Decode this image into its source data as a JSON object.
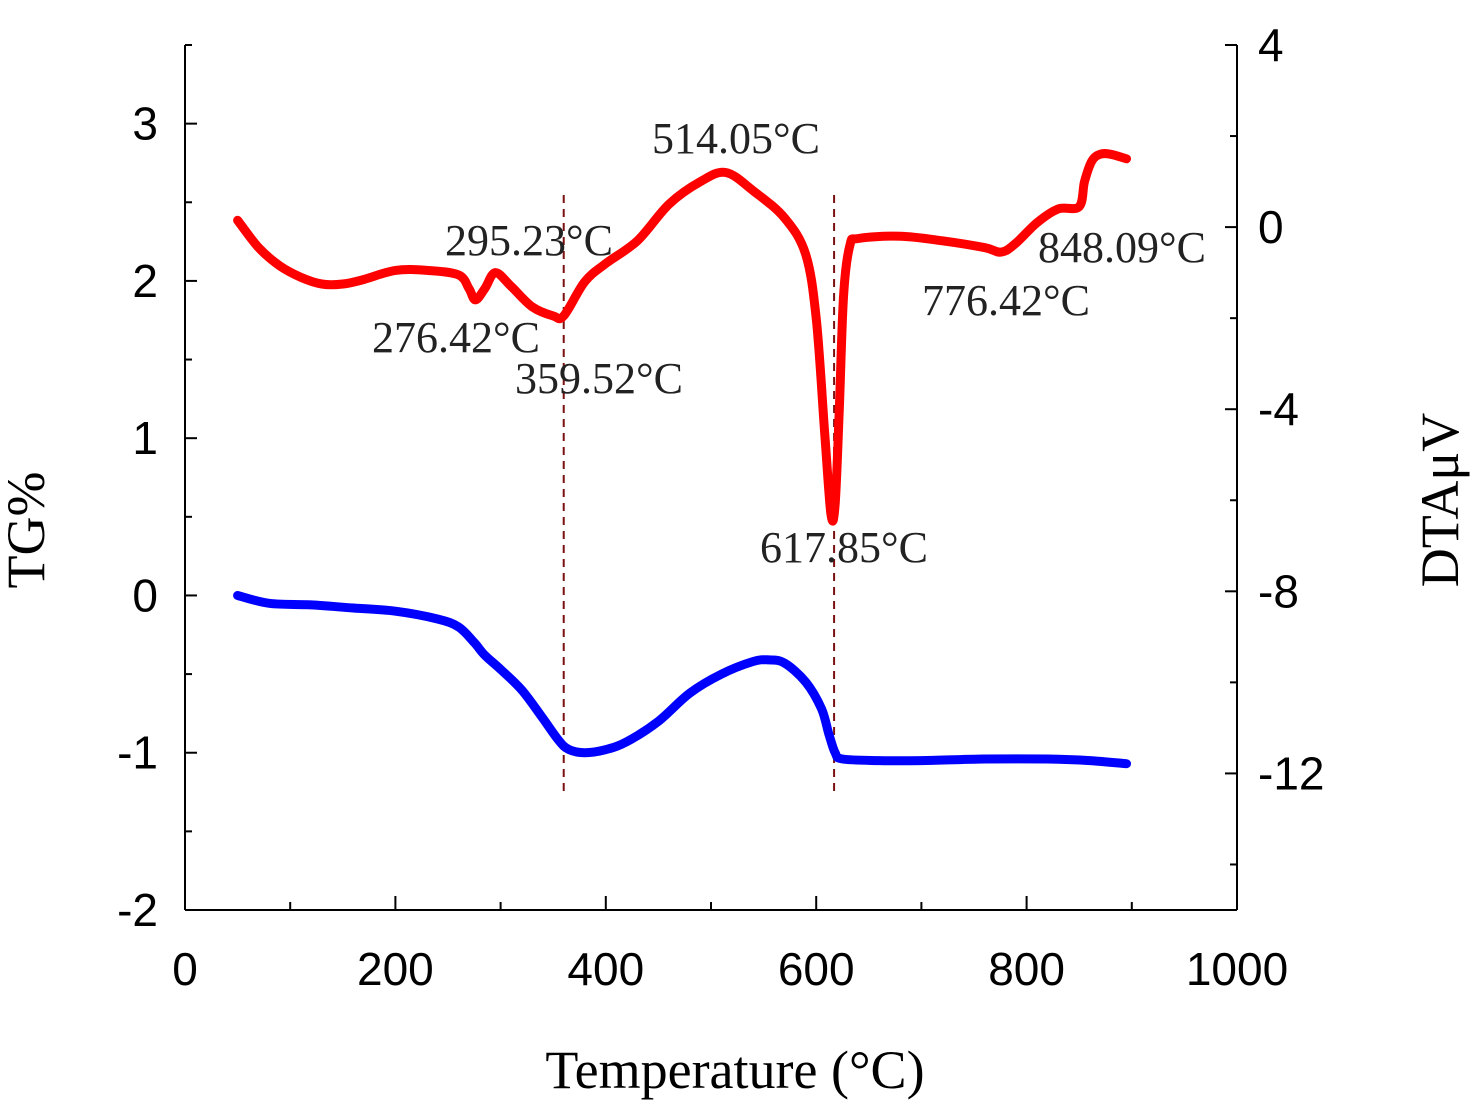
{
  "chart_data": {
    "type": "line",
    "xlabel": "Temperature (°C)",
    "ylabel_left": "TG%",
    "ylabel_right": "DTAμV",
    "xlim": [
      0,
      1000
    ],
    "ylim_left": [
      -2,
      3.5
    ],
    "ylim_right": [
      -15,
      4
    ],
    "x_ticks": [
      {
        "value": 0,
        "label": "0"
      },
      {
        "value": 200,
        "label": "200"
      },
      {
        "value": 400,
        "label": "400"
      },
      {
        "value": 600,
        "label": "600"
      },
      {
        "value": 800,
        "label": "800"
      },
      {
        "value": 1000,
        "label": "1000"
      }
    ],
    "y_left_ticks": [
      {
        "value": 3,
        "label": "3"
      },
      {
        "value": 2,
        "label": "2"
      },
      {
        "value": 1,
        "label": "1"
      },
      {
        "value": 0,
        "label": "0"
      },
      {
        "value": -1,
        "label": "-1"
      },
      {
        "value": -2,
        "label": "-2"
      }
    ],
    "y_right_ticks": [
      {
        "value": 4,
        "label": "4"
      },
      {
        "value": 0,
        "label": "0"
      },
      {
        "value": -4,
        "label": "-4"
      },
      {
        "value": -8,
        "label": "-8"
      },
      {
        "value": -12,
        "label": "-12"
      }
    ],
    "series": [
      {
        "axis": "right",
        "color": "#ff0000",
        "x": [
          50,
          70,
          90,
          110,
          130,
          150,
          170,
          200,
          230,
          260,
          270,
          276,
          285,
          295,
          310,
          330,
          350,
          360,
          380,
          400,
          430,
          460,
          490,
          514,
          540,
          570,
          590,
          600,
          608,
          614,
          618,
          622,
          626,
          632,
          640,
          680,
          720,
          760,
          776,
          790,
          810,
          830,
          850,
          855,
          862,
          870,
          880,
          895
        ],
        "y": [
          0.15,
          -0.45,
          -0.85,
          -1.1,
          -1.25,
          -1.25,
          -1.15,
          -0.95,
          -0.95,
          -1.05,
          -1.35,
          -1.6,
          -1.35,
          -1.0,
          -1.3,
          -1.75,
          -1.95,
          -1.95,
          -1.2,
          -0.8,
          -0.3,
          0.5,
          1.0,
          1.2,
          0.8,
          0.2,
          -0.6,
          -2.0,
          -4.5,
          -6.3,
          -6.1,
          -4.0,
          -1.5,
          -0.4,
          -0.25,
          -0.2,
          -0.3,
          -0.45,
          -0.55,
          -0.35,
          0.1,
          0.4,
          0.45,
          1.0,
          1.45,
          1.6,
          1.6,
          1.5
        ]
      },
      {
        "axis": "left",
        "color": "#0000ff",
        "x": [
          50,
          80,
          120,
          160,
          200,
          240,
          260,
          275,
          285,
          300,
          320,
          340,
          355,
          365,
          380,
          400,
          420,
          450,
          480,
          510,
          540,
          555,
          570,
          590,
          605,
          612,
          618,
          625,
          660,
          700,
          760,
          820,
          860,
          895
        ],
        "y": [
          0.0,
          -0.05,
          -0.06,
          -0.08,
          -0.1,
          -0.15,
          -0.2,
          -0.3,
          -0.38,
          -0.47,
          -0.6,
          -0.78,
          -0.92,
          -0.98,
          -1.0,
          -0.98,
          -0.93,
          -0.8,
          -0.62,
          -0.5,
          -0.42,
          -0.41,
          -0.43,
          -0.55,
          -0.72,
          -0.88,
          -1.0,
          -1.04,
          -1.05,
          -1.05,
          -1.04,
          -1.04,
          -1.05,
          -1.07
        ]
      }
    ],
    "reference_lines": [
      {
        "x": 360
      },
      {
        "x": 617
      }
    ],
    "annotations": [
      {
        "label": "295.23°C"
      },
      {
        "label": "276.42°C"
      },
      {
        "label": "359.52°C"
      },
      {
        "label": "514.05°C"
      },
      {
        "label": "617.85°C"
      },
      {
        "label": "776.42°C"
      },
      {
        "label": "848.09°C"
      }
    ]
  }
}
